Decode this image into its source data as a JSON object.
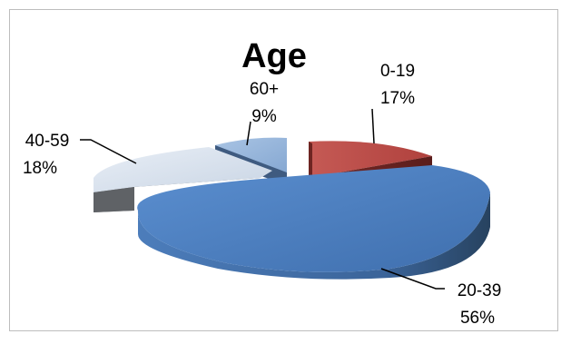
{
  "chart_data": {
    "type": "pie",
    "title": "Age",
    "slices": [
      {
        "label": "0-19",
        "value": 17,
        "value_label": "17%",
        "color": "#c0504d"
      },
      {
        "label": "20-39",
        "value": 56,
        "value_label": "56%",
        "color": "#4f81bd"
      },
      {
        "label": "40-59",
        "value": 18,
        "value_label": "18%",
        "color": "#dce6f2"
      },
      {
        "label": "60+",
        "value": 9,
        "value_label": "9%",
        "color": "#95b3d7"
      }
    ],
    "style": "3d-exploded",
    "legend": "none"
  }
}
